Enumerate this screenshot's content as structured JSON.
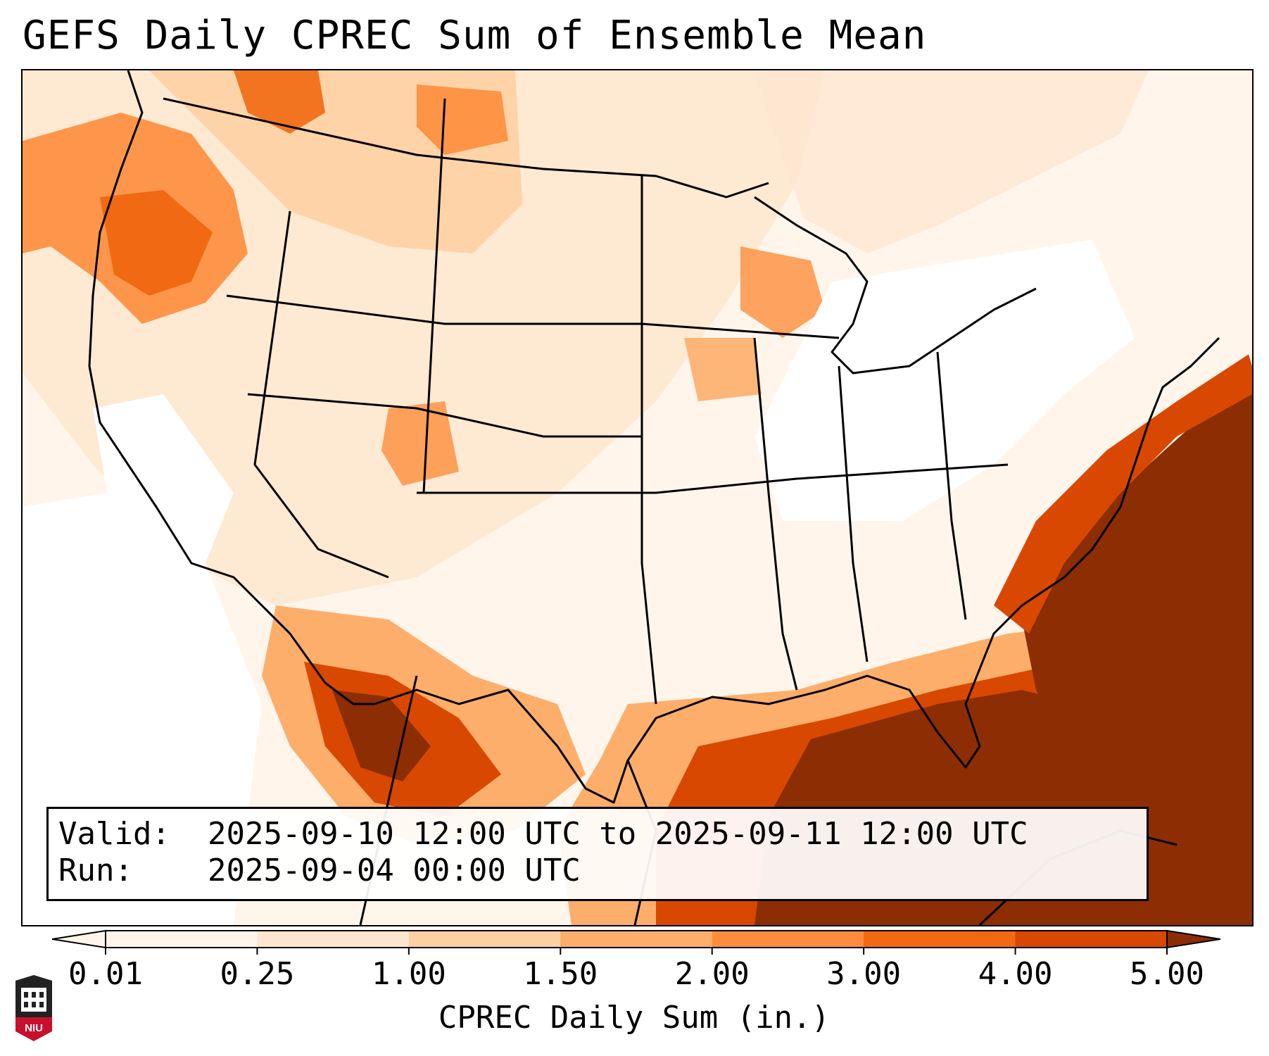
{
  "title": "GEFS Daily CPREC Sum of Ensemble Mean",
  "info": {
    "valid_label": "Valid:",
    "valid_value": "2025-09-10 12:00 UTC to 2025-09-11 12:00 UTC",
    "run_label": "Run:",
    "run_value": "2025-09-04 00:00 UTC"
  },
  "colorbar": {
    "label": "CPREC Daily Sum (in.)",
    "ticks": [
      "0.01",
      "0.25",
      "1.00",
      "1.50",
      "2.00",
      "3.00",
      "4.00",
      "5.00"
    ],
    "colors": [
      "#fff5eb",
      "#fee6ce",
      "#fdd0a2",
      "#fdae6b",
      "#fd8d3c",
      "#f16913",
      "#d94801",
      "#8c2d04"
    ]
  },
  "logo": {
    "text": "NIU",
    "color": "#c8102e"
  }
}
